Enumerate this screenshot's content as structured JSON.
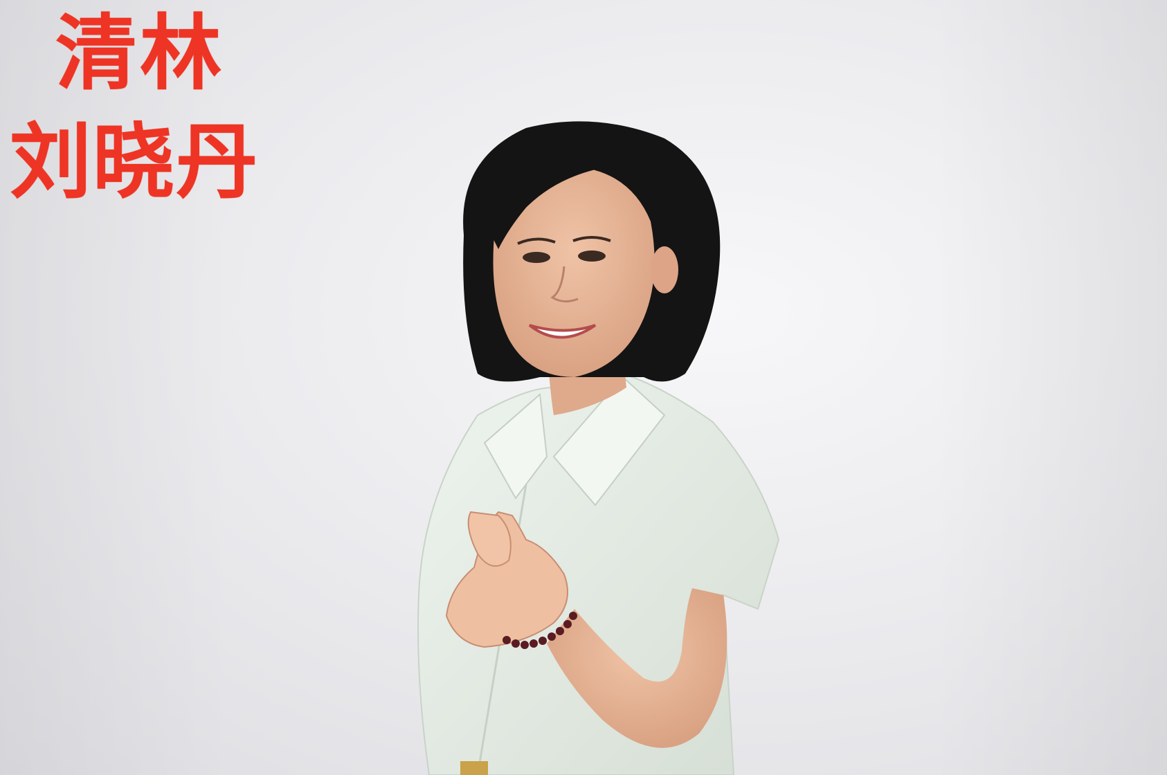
{
  "caption": {
    "line_1": "清林",
    "line_2": "刘晓丹",
    "color": "#ee3424"
  },
  "photo": {
    "background_color": "#ececef",
    "shirt_color": "#e6efe6",
    "hair_color": "#151515",
    "skin_color": "#e8b598",
    "bracelet_color": "#5a1c22"
  }
}
